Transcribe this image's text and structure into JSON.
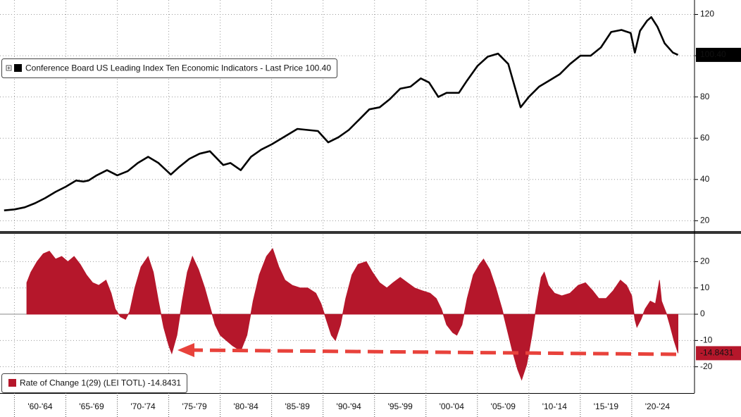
{
  "chart_data": [
    {
      "type": "line",
      "xlim": [
        1958.6,
        2026.1
      ],
      "ylim": [
        15,
        127
      ],
      "yticks": [
        20,
        40,
        60,
        80,
        100,
        120
      ],
      "grid": true,
      "legend": "upper left",
      "x": [
        1959.0,
        1960.0,
        1961.0,
        1962.0,
        1963.0,
        1964.0,
        1965.0,
        1966.0,
        1966.7,
        1967.2,
        1968.0,
        1969.0,
        1970.0,
        1971.0,
        1972.0,
        1973.0,
        1974.0,
        1975.2,
        1976.0,
        1977.0,
        1978.0,
        1979.0,
        1980.3,
        1981.0,
        1982.0,
        1983.0,
        1984.0,
        1985.0,
        1986.0,
        1987.5,
        1989.5,
        1990.5,
        1991.5,
        1992.5,
        1993.5,
        1994.5,
        1995.5,
        1996.5,
        1997.5,
        1998.5,
        1999.5,
        2000.3,
        2001.2,
        2002.0,
        2003.2,
        2004.0,
        2005.0,
        2006.0,
        2007.0,
        2008.0,
        2009.2,
        2010.0,
        2011.0,
        2012.0,
        2013.0,
        2014.0,
        2015.0,
        2016.0,
        2017.0,
        2018.0,
        2019.0,
        2019.9,
        2020.3,
        2020.8,
        2021.5,
        2021.9,
        2022.5,
        2023.2,
        2024.0,
        2024.5
      ],
      "series": [
        {
          "name": "Conference Board US Leading Index Ten Economic Indicators - Last Price 100.40",
          "color": "#000000",
          "last_value_label": "100.40",
          "values": [
            25,
            25.5,
            26.5,
            28.5,
            31,
            34,
            36.5,
            39.5,
            39,
            39.5,
            42,
            44.5,
            42,
            44,
            48,
            51,
            48,
            42.4,
            46,
            50,
            52.5,
            53.7,
            47,
            48,
            44.5,
            51,
            54.5,
            57,
            60,
            64.5,
            63.5,
            58,
            60.5,
            64,
            69,
            74,
            75,
            79,
            84,
            85,
            89,
            87,
            80,
            82,
            82,
            88,
            95,
            99.5,
            101,
            96,
            75,
            80,
            85,
            88,
            91,
            96,
            100,
            100,
            104,
            111.5,
            112.5,
            111,
            101.5,
            112,
            117,
            118.7,
            114,
            106,
            101.5,
            100.4
          ]
        }
      ]
    },
    {
      "type": "area",
      "xlim": [
        1958.6,
        2026.1
      ],
      "ylim": [
        -30,
        30.3
      ],
      "yticks": [
        -20,
        -10,
        0,
        10,
        20
      ],
      "xticks": [
        {
          "value": 1962.5,
          "label": "'60-'64"
        },
        {
          "value": 1967.5,
          "label": "'65-'69"
        },
        {
          "value": 1972.5,
          "label": "'70-'74"
        },
        {
          "value": 1977.5,
          "label": "'75-'79"
        },
        {
          "value": 1982.5,
          "label": "'80-'84"
        },
        {
          "value": 1987.5,
          "label": "'85-'89"
        },
        {
          "value": 1992.5,
          "label": "'90-'94"
        },
        {
          "value": 1997.5,
          "label": "'95-'99"
        },
        {
          "value": 2002.5,
          "label": "'00-'04"
        },
        {
          "value": 2007.5,
          "label": "'05-'09"
        },
        {
          "value": 2012.5,
          "label": "'10-'14"
        },
        {
          "value": 2017.5,
          "label": "'15-'19"
        },
        {
          "value": 2022.5,
          "label": "'20-'24"
        }
      ],
      "grid": true,
      "legend": "lower left",
      "x": [
        1961.2,
        1961.6,
        1962.2,
        1962.8,
        1963.4,
        1964.0,
        1964.6,
        1965.2,
        1965.8,
        1966.4,
        1967.0,
        1967.6,
        1968.2,
        1968.9,
        1969.4,
        1969.8,
        1970.3,
        1970.8,
        1971.2,
        1971.7,
        1972.3,
        1973.0,
        1973.5,
        1974.0,
        1974.5,
        1975.0,
        1975.3,
        1975.8,
        1976.3,
        1976.8,
        1977.3,
        1977.9,
        1978.5,
        1979.0,
        1979.5,
        1980.0,
        1980.6,
        1981.2,
        1982.0,
        1982.6,
        1983.2,
        1983.8,
        1984.5,
        1985.1,
        1985.7,
        1986.3,
        1987.0,
        1987.8,
        1988.5,
        1989.3,
        1989.8,
        1990.3,
        1990.8,
        1991.2,
        1991.7,
        1992.2,
        1992.8,
        1993.4,
        1994.2,
        1994.8,
        1995.5,
        1996.2,
        1996.8,
        1997.5,
        1998.2,
        1998.9,
        1999.6,
        2000.4,
        2001.0,
        2001.5,
        2002.0,
        2002.6,
        2003.0,
        2003.5,
        2004.0,
        2004.6,
        2005.2,
        2005.6,
        2006.2,
        2006.8,
        2007.4,
        2007.9,
        2008.4,
        2008.9,
        2009.3,
        2009.8,
        2010.3,
        2010.8,
        2011.2,
        2011.5,
        2011.9,
        2012.5,
        2013.2,
        2014.0,
        2014.8,
        2015.5,
        2016.2,
        2016.8,
        2017.5,
        2018.2,
        2018.9,
        2019.5,
        2020.0,
        2020.3,
        2020.5,
        2020.9,
        2021.3,
        2021.8,
        2022.3,
        2022.7,
        2022.9,
        2023.2,
        2023.4,
        2023.7,
        2024.1,
        2024.5
      ],
      "series": [
        {
          "name": "Rate of Change 1(29) (LEI TOTL) -14.8431",
          "color": "#b5172b",
          "last_value_label": "-14.8431",
          "values": [
            12,
            16,
            20,
            23,
            24,
            21,
            22,
            20,
            22,
            19,
            15,
            12,
            11,
            13,
            8,
            2,
            -1,
            -2,
            1,
            10,
            18,
            22,
            16,
            5,
            -5,
            -12,
            -15,
            -8,
            5,
            16,
            22,
            17,
            10,
            3,
            -4,
            -8,
            -10,
            -12,
            -14,
            -8,
            5,
            15,
            22,
            25,
            18,
            13,
            11,
            10,
            10,
            8,
            4,
            -2,
            -8,
            -10,
            -4,
            6,
            15,
            19,
            20,
            16,
            12,
            10,
            12,
            14,
            12,
            10,
            9,
            8,
            6,
            2,
            -4,
            -7,
            -8,
            -4,
            6,
            15,
            19,
            21,
            17,
            10,
            2,
            -6,
            -14,
            -21,
            -25,
            -19,
            -8,
            5,
            14,
            16,
            11,
            8,
            7,
            8,
            11,
            12,
            9,
            6,
            6,
            9,
            13,
            11,
            7,
            -2,
            -5,
            -2,
            2,
            5,
            4,
            13,
            5,
            2,
            0,
            -4,
            -10,
            -14.8431
          ]
        }
      ]
    }
  ]
}
